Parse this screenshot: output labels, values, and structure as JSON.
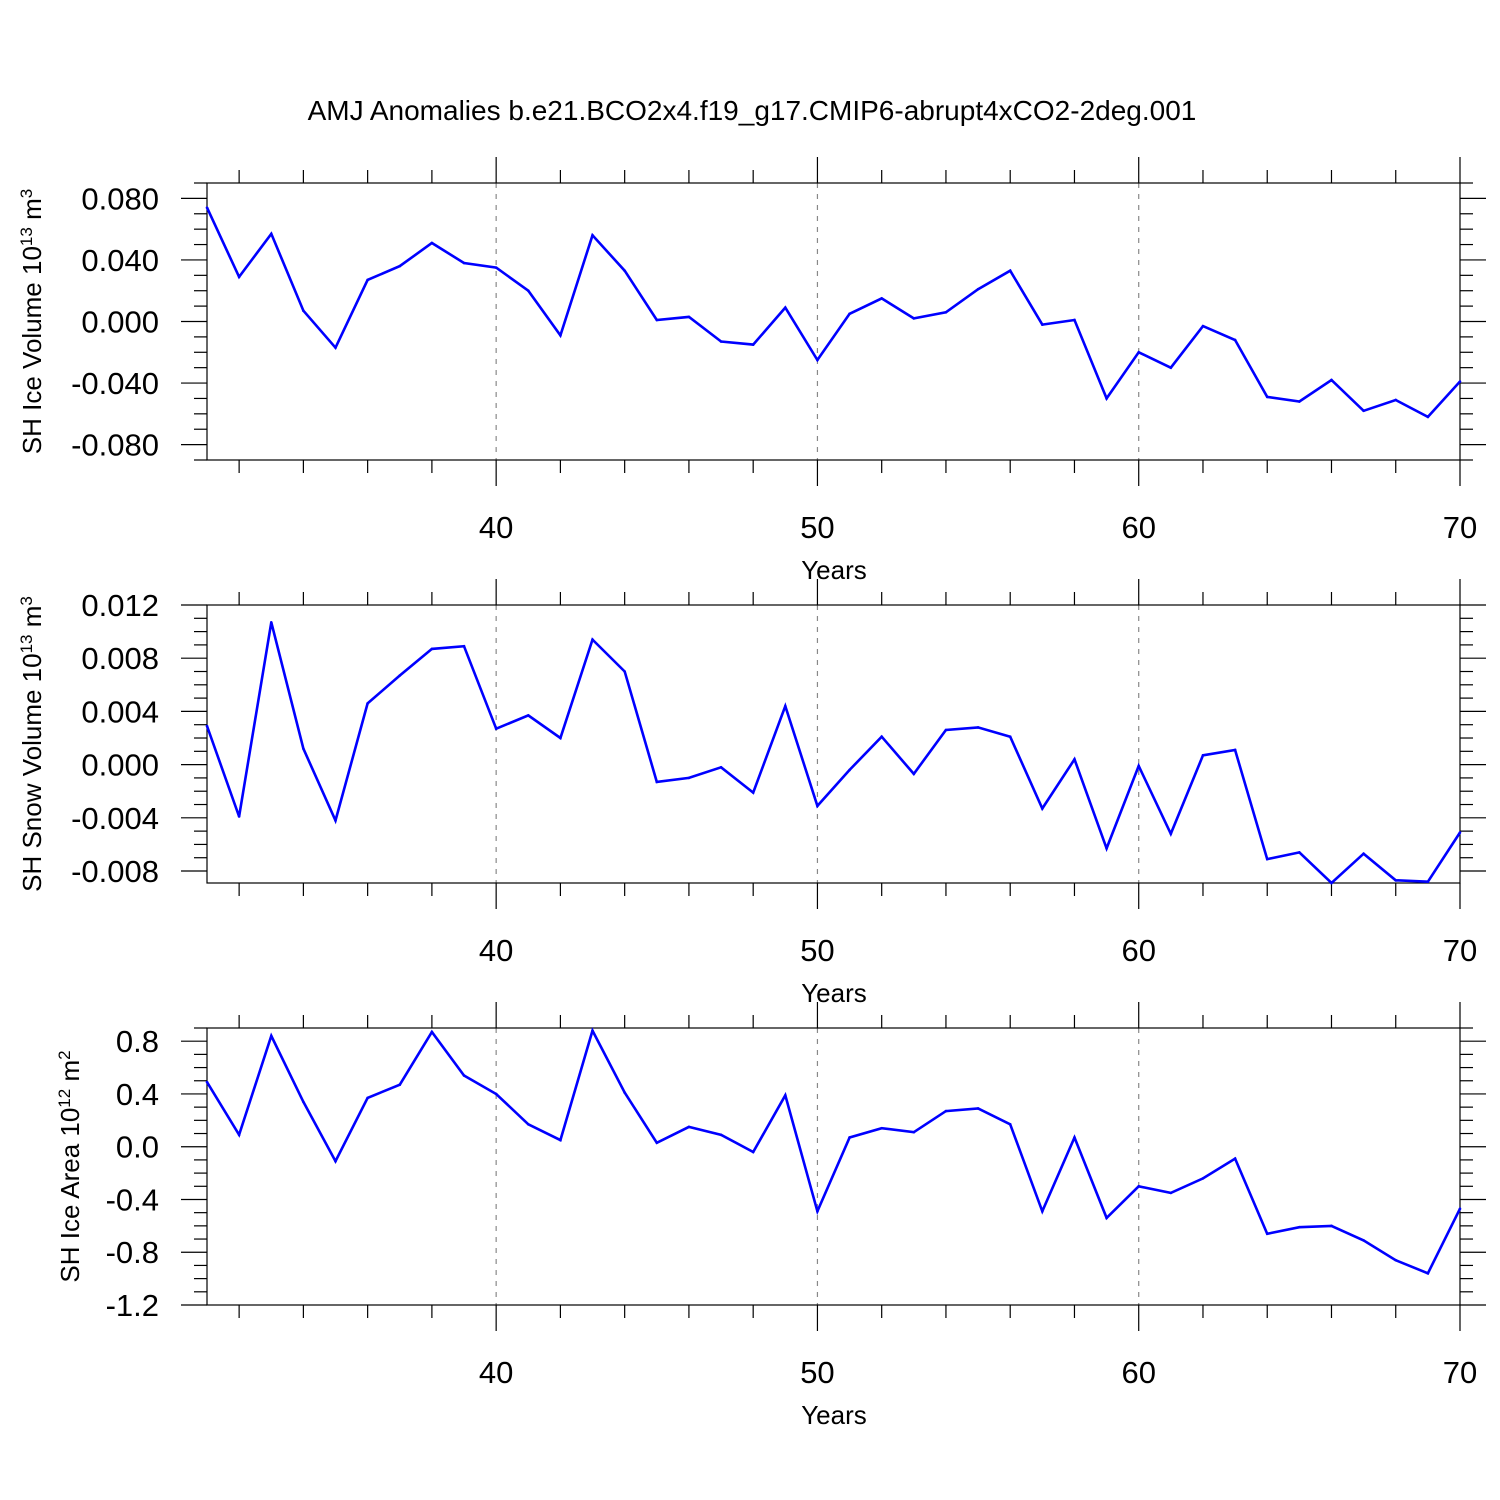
{
  "figure_title": "AMJ Anomalies b.e21.BCO2x4.f19_g17.CMIP6-abrupt4xCO2-2deg.001",
  "colors": {
    "series": "#0000ff",
    "grid": "#888888",
    "axes": "#000000"
  },
  "chart_data": [
    {
      "type": "line",
      "ylabel": "SH Ice Volume 10",
      "ylabel_exp": "13",
      "ylabel_unit": " m",
      "ylabel_unit_exp": "3",
      "xlabel": "Years",
      "xlim": [
        31,
        70
      ],
      "ylim": [
        -0.09,
        0.09
      ],
      "xticks": [
        "40",
        "50",
        "60",
        "70"
      ],
      "xtick_values": [
        40,
        50,
        60,
        70
      ],
      "yticks": [
        "0.080",
        "0.040",
        "0.000",
        "-0.040",
        "-0.080"
      ],
      "ytick_values": [
        0.08,
        0.04,
        0.0,
        -0.04,
        -0.08
      ],
      "grid_x": [
        40,
        50,
        60
      ],
      "x": [
        31,
        32,
        33,
        34,
        35,
        36,
        37,
        38,
        39,
        40,
        41,
        42,
        43,
        44,
        45,
        46,
        47,
        48,
        49,
        50,
        51,
        52,
        53,
        54,
        55,
        56,
        57,
        58,
        59,
        60,
        61,
        62,
        63,
        64,
        65,
        66,
        67,
        68,
        69,
        70
      ],
      "values": [
        0.074,
        0.029,
        0.057,
        0.007,
        -0.017,
        0.027,
        0.036,
        0.051,
        0.038,
        0.035,
        0.02,
        -0.009,
        0.056,
        0.033,
        0.001,
        0.003,
        -0.013,
        -0.015,
        0.009,
        -0.025,
        0.005,
        0.015,
        0.002,
        0.006,
        0.021,
        0.033,
        -0.002,
        0.001,
        -0.05,
        -0.02,
        -0.03,
        -0.003,
        -0.012,
        -0.049,
        -0.052,
        -0.038,
        -0.058,
        -0.051,
        -0.062,
        -0.039
      ]
    },
    {
      "type": "line",
      "ylabel": "SH Snow Volume 10",
      "ylabel_exp": "13",
      "ylabel_unit": " m",
      "ylabel_unit_exp": "3",
      "xlabel": "Years",
      "xlim": [
        31,
        70
      ],
      "ylim": [
        -0.0089,
        0.012
      ],
      "xticks": [
        "40",
        "50",
        "60",
        "70"
      ],
      "xtick_values": [
        40,
        50,
        60,
        70
      ],
      "yticks": [
        "0.012",
        "0.008",
        "0.004",
        "0.000",
        "-0.004",
        "-0.008"
      ],
      "ytick_values": [
        0.012,
        0.008,
        0.004,
        0.0,
        -0.004,
        -0.008
      ],
      "grid_x": [
        40,
        50,
        60
      ],
      "x": [
        31,
        32,
        33,
        34,
        35,
        36,
        37,
        38,
        39,
        40,
        41,
        42,
        43,
        44,
        45,
        46,
        47,
        48,
        49,
        50,
        51,
        52,
        53,
        54,
        55,
        56,
        57,
        58,
        59,
        60,
        61,
        62,
        63,
        64,
        65,
        66,
        67,
        68,
        69,
        70
      ],
      "values": [
        0.0029,
        -0.0039,
        0.0107,
        0.0012,
        -0.0042,
        0.0046,
        0.0067,
        0.0087,
        0.0089,
        0.0027,
        0.0037,
        0.002,
        0.0094,
        0.007,
        -0.0013,
        -0.001,
        -0.0002,
        -0.0021,
        0.0044,
        -0.0031,
        -0.0004,
        0.0021,
        -0.0007,
        0.0026,
        0.0028,
        0.0021,
        -0.0033,
        0.0004,
        -0.0063,
        -0.0001,
        -0.0052,
        0.0007,
        0.0011,
        -0.0071,
        -0.0066,
        -0.0089,
        -0.0067,
        -0.0087,
        -0.0088,
        -0.0051
      ]
    },
    {
      "type": "line",
      "ylabel": "SH Ice Area 10",
      "ylabel_exp": "12",
      "ylabel_unit": " m",
      "ylabel_unit_exp": "2",
      "xlabel": "Years",
      "xlim": [
        31,
        70
      ],
      "ylim": [
        -1.2,
        0.9
      ],
      "xticks": [
        "40",
        "50",
        "60",
        "70"
      ],
      "xtick_values": [
        40,
        50,
        60,
        70
      ],
      "yticks": [
        "0.8",
        "0.4",
        "0.0",
        "-0.4",
        "-0.8",
        "-1.2"
      ],
      "ytick_values": [
        0.8,
        0.4,
        0.0,
        -0.4,
        -0.8,
        -1.2
      ],
      "grid_x": [
        40,
        50,
        60
      ],
      "x": [
        31,
        32,
        33,
        34,
        35,
        36,
        37,
        38,
        39,
        40,
        41,
        42,
        43,
        44,
        45,
        46,
        47,
        48,
        49,
        50,
        51,
        52,
        53,
        54,
        55,
        56,
        57,
        58,
        59,
        60,
        61,
        62,
        63,
        64,
        65,
        66,
        67,
        68,
        69,
        70
      ],
      "values": [
        0.49,
        0.09,
        0.84,
        0.34,
        -0.11,
        0.37,
        0.47,
        0.87,
        0.54,
        0.4,
        0.17,
        0.05,
        0.88,
        0.41,
        0.03,
        0.15,
        0.09,
        -0.04,
        0.39,
        -0.49,
        0.07,
        0.14,
        0.11,
        0.27,
        0.29,
        0.17,
        -0.49,
        0.07,
        -0.54,
        -0.3,
        -0.35,
        -0.24,
        -0.09,
        -0.66,
        -0.61,
        -0.6,
        -0.71,
        -0.86,
        -0.96,
        -0.47
      ]
    }
  ]
}
